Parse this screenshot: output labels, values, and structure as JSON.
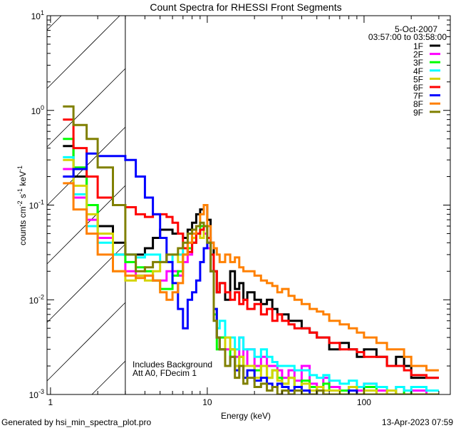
{
  "chart_data": {
    "type": "line",
    "step": true,
    "title": "Count Spectra for RHESSI Front Segments",
    "xlabel": "Energy (keV)",
    "ylabel": {
      "text": "counts cm",
      "e1": "-2",
      "mid": " s",
      "e2": "-1",
      "end": " keV",
      "e3": "-1"
    },
    "xscale": "log",
    "yscale": "log",
    "xlim": [
      0.95,
      355
    ],
    "ylim": [
      0.001,
      10
    ],
    "xticks": [
      {
        "value": 1,
        "label": "1"
      },
      {
        "value": 10,
        "label": "10"
      },
      {
        "value": 100,
        "label": "100"
      }
    ],
    "yticks": [
      {
        "value": 10,
        "base": "10",
        "exp": "1"
      },
      {
        "value": 1,
        "base": "10",
        "exp": "0"
      },
      {
        "value": 0.1,
        "base": "10",
        "exp": "-1"
      },
      {
        "value": 0.01,
        "base": "10",
        "exp": "-2"
      },
      {
        "value": 0.001,
        "base": "10",
        "exp": "-3"
      }
    ],
    "excluded_region_keV": [
      0.95,
      3
    ],
    "annotations": {
      "date": "5-Oct-2007",
      "time_range": "03:57:00 to 03:58:00",
      "note1": "Includes Background",
      "note2": "Att A0, FDecim 1"
    },
    "legend_placement": "top-right",
    "bin_edges_keV": [
      1.2,
      1.4,
      1.7,
      2.0,
      2.5,
      3.0,
      3.5,
      4,
      4.5,
      5,
      5.5,
      6,
      6.5,
      7,
      7.5,
      8,
      8.5,
      9,
      9.5,
      10,
      10.5,
      11,
      11.5,
      12,
      13,
      14,
      15,
      16,
      17,
      18,
      20,
      22,
      24,
      26,
      28,
      30,
      33,
      36,
      40,
      45,
      50,
      55,
      60,
      70,
      80,
      90,
      100,
      120,
      140,
      160,
      180,
      200,
      250,
      300
    ],
    "series": [
      {
        "name": "1F",
        "color": "#000000",
        "values": [
          0.42,
          0.2,
          0.1,
          0.06,
          0.04,
          0.03,
          0.03,
          0.035,
          0.045,
          0.055,
          0.055,
          0.05,
          0.05,
          0.045,
          0.055,
          0.065,
          0.08,
          0.09,
          0.1,
          0.07,
          0.04,
          0.02,
          0.012,
          0.015,
          0.01,
          0.02,
          0.013,
          0.015,
          0.01,
          0.012,
          0.01,
          0.009,
          0.01,
          0.008,
          0.007,
          0.007,
          0.006,
          0.006,
          0.005,
          0.0045,
          0.004,
          0.004,
          0.003,
          0.0035,
          0.003,
          0.0025,
          0.003,
          0.0025,
          0.002,
          0.0025,
          0.002,
          0.0015,
          0.0015
        ]
      },
      {
        "name": "2F",
        "color": "#ff00ff",
        "values": [
          0.24,
          0.12,
          0.07,
          0.045,
          0.03,
          0.02,
          0.018,
          0.018,
          0.016,
          0.016,
          0.02,
          0.02,
          0.018,
          0.025,
          0.03,
          0.04,
          0.05,
          0.045,
          0.05,
          0.035,
          0.02,
          0.008,
          0.004,
          0.004,
          0.003,
          0.003,
          0.0025,
          0.004,
          0.002,
          0.003,
          0.002,
          0.0025,
          0.002,
          0.002,
          0.0018,
          0.0015,
          0.0018,
          0.0014,
          0.002,
          0.0013,
          0.0012,
          0.0015,
          0.0012,
          0.0011,
          0.0012,
          0.0011,
          0.0013,
          0.0011,
          0.001,
          0.0012,
          0.001,
          0.0011,
          0.001
        ]
      },
      {
        "name": "3F",
        "color": "#00ff00",
        "values": [
          0.5,
          0.25,
          0.1,
          0.05,
          0.03,
          0.025,
          0.022,
          0.02,
          0.016,
          0.013,
          0.013,
          0.018,
          0.02,
          0.03,
          0.035,
          0.04,
          0.05,
          0.06,
          0.06,
          0.04,
          0.02,
          0.007,
          0.003,
          0.004,
          0.002,
          0.003,
          0.002,
          0.0025,
          0.002,
          0.002,
          0.0018,
          0.002,
          0.0015,
          0.0018,
          0.0015,
          0.0013,
          0.0015,
          0.0012,
          0.0014,
          0.0012,
          0.0011,
          0.0013,
          0.0011,
          0.0011,
          0.0012,
          0.001,
          0.0012,
          0.001,
          0.0011,
          0.001,
          0.0011,
          0.001,
          0.001
        ]
      },
      {
        "name": "4F",
        "color": "#00ffff",
        "values": [
          0.32,
          0.13,
          0.06,
          0.04,
          0.03,
          0.03,
          0.028,
          0.03,
          0.03,
          0.025,
          0.025,
          0.03,
          0.03,
          0.035,
          0.04,
          0.045,
          0.05,
          0.055,
          0.06,
          0.04,
          0.02,
          0.008,
          0.005,
          0.006,
          0.004,
          0.004,
          0.003,
          0.004,
          0.003,
          0.003,
          0.0025,
          0.003,
          0.0025,
          0.0022,
          0.002,
          0.002,
          0.002,
          0.0018,
          0.0018,
          0.0016,
          0.0015,
          0.0016,
          0.0014,
          0.0013,
          0.0014,
          0.0012,
          0.0013,
          0.0012,
          0.0011,
          0.0012,
          0.0011,
          0.0012,
          0.0011
        ]
      },
      {
        "name": "5F",
        "color": "#d4d400",
        "values": [
          0.3,
          0.16,
          0.08,
          0.05,
          0.02,
          0.016,
          0.018,
          0.016,
          0.02,
          0.025,
          0.03,
          0.03,
          0.025,
          0.03,
          0.04,
          0.045,
          0.05,
          0.045,
          0.06,
          0.04,
          0.02,
          0.008,
          0.004,
          0.003,
          0.004,
          0.003,
          0.002,
          0.0025,
          0.002,
          0.002,
          0.0015,
          0.002,
          0.0015,
          0.0018,
          0.0014,
          0.0013,
          0.0015,
          0.0012,
          0.0013,
          0.0011,
          0.0012,
          0.0011,
          0.0011,
          0.001,
          0.0012,
          0.001,
          0.0011,
          0.001,
          0.0011,
          0.001,
          0.001,
          0.001,
          0.001
        ]
      },
      {
        "name": "6F",
        "color": "#ff0000",
        "values": [
          0.8,
          0.4,
          0.2,
          0.12,
          0.1,
          0.095,
          0.08,
          0.075,
          0.08,
          0.08,
          0.075,
          0.065,
          0.05,
          0.035,
          0.032,
          0.04,
          0.05,
          0.055,
          0.06,
          0.045,
          0.03,
          0.02,
          0.012,
          0.015,
          0.012,
          0.01,
          0.012,
          0.009,
          0.01,
          0.008,
          0.009,
          0.007,
          0.008,
          0.006,
          0.007,
          0.006,
          0.0055,
          0.005,
          0.005,
          0.0045,
          0.004,
          0.004,
          0.0035,
          0.003,
          0.003,
          0.0028,
          0.0025,
          0.0025,
          0.002,
          0.002,
          0.0018,
          0.0016,
          0.0015
        ]
      },
      {
        "name": "7F",
        "color": "#0000ff",
        "values": [
          0.2,
          0.24,
          0.35,
          0.33,
          0.33,
          0.3,
          0.2,
          0.12,
          0.08,
          0.045,
          0.025,
          0.015,
          0.008,
          0.005,
          0.01,
          0.012,
          0.016,
          0.025,
          0.035,
          0.04,
          0.02,
          0.008,
          0.004,
          0.003,
          0.002,
          0.0025,
          0.0018,
          0.002,
          0.0015,
          0.0018,
          0.0014,
          0.0015,
          0.0013,
          0.0012,
          0.0013,
          0.0012,
          0.0011,
          0.0012,
          0.0011,
          0.001,
          0.0011,
          0.001,
          0.001,
          0.001,
          0.0011,
          0.001,
          0.001,
          0.001,
          0.001,
          0.001,
          0.001,
          0.001,
          0.001
        ]
      },
      {
        "name": "8F",
        "color": "#ff8000",
        "values": [
          0.17,
          0.09,
          0.05,
          0.03,
          0.02,
          0.018,
          0.017,
          0.018,
          0.016,
          0.012,
          0.01,
          0.012,
          0.015,
          0.03,
          0.04,
          0.05,
          0.06,
          0.08,
          0.1,
          0.06,
          0.04,
          0.035,
          0.03,
          0.025,
          0.03,
          0.025,
          0.028,
          0.022,
          0.02,
          0.02,
          0.018,
          0.016,
          0.015,
          0.014,
          0.012,
          0.013,
          0.011,
          0.01,
          0.009,
          0.008,
          0.0075,
          0.007,
          0.006,
          0.0055,
          0.005,
          0.0045,
          0.004,
          0.0035,
          0.003,
          0.003,
          0.0025,
          0.002,
          0.0018
        ]
      },
      {
        "name": "9F",
        "color": "#808000",
        "values": [
          1.1,
          0.7,
          0.5,
          0.25,
          0.1,
          0.03,
          0.02,
          0.022,
          0.025,
          0.025,
          0.03,
          0.03,
          0.035,
          0.04,
          0.05,
          0.055,
          0.06,
          0.065,
          0.06,
          0.04,
          0.02,
          0.006,
          0.004,
          0.003,
          0.002,
          0.0025,
          0.0015,
          0.002,
          0.0013,
          0.0015,
          0.0012,
          0.0013,
          0.0011,
          0.0012,
          0.001,
          0.0011,
          0.001,
          0.0011,
          0.001,
          0.001,
          0.0011,
          0.001,
          0.001,
          0.001,
          0.001,
          0.001,
          0.001,
          0.001,
          0.001,
          0.001,
          0.001,
          0.001,
          0.001
        ]
      }
    ]
  },
  "footer": {
    "generator": "Generated by hsi_min_spectra_plot.pro",
    "timestamp": "13-Apr-2023 07:59"
  }
}
